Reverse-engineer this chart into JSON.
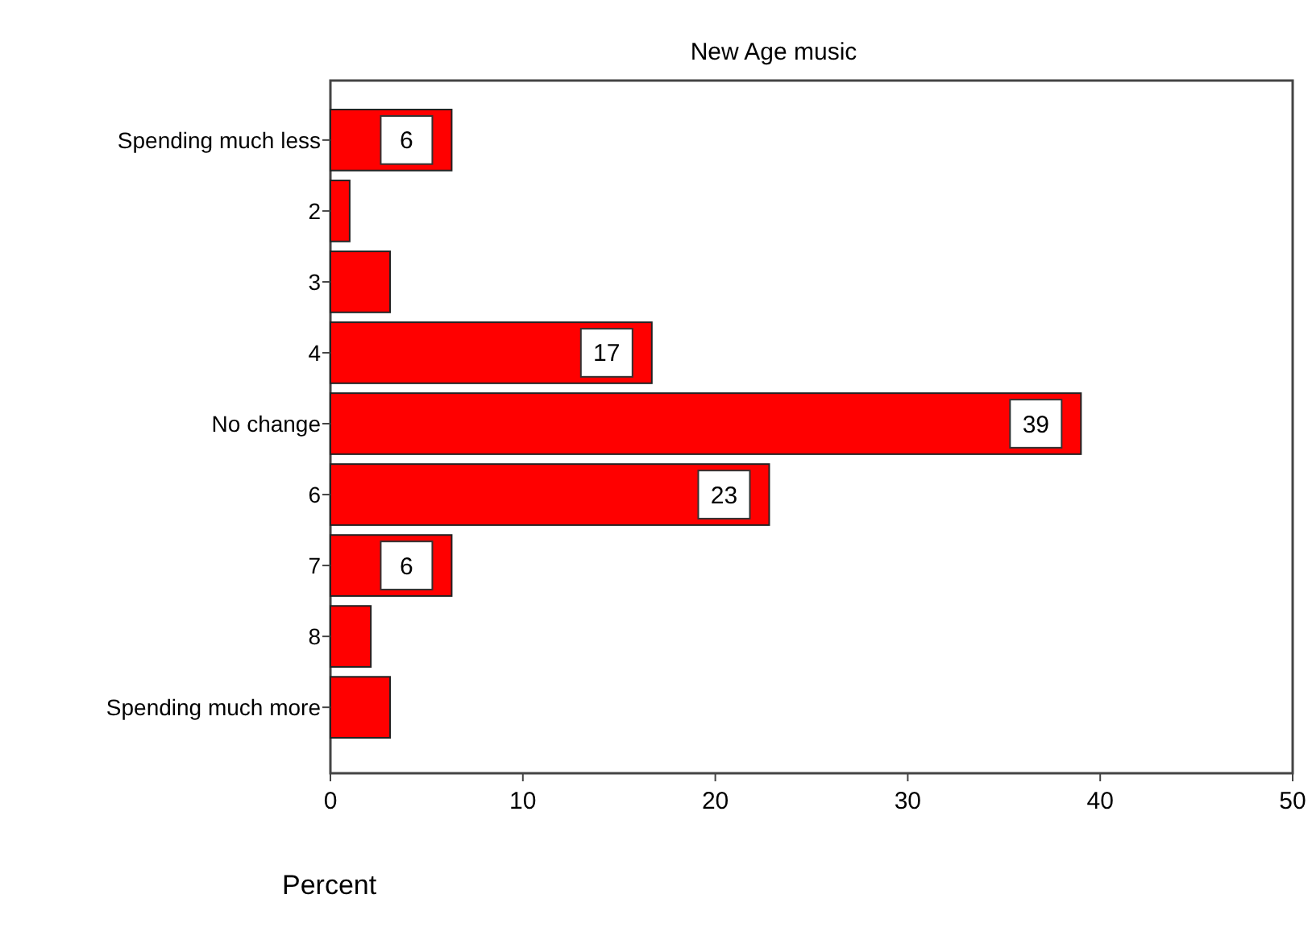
{
  "chart_data": {
    "type": "bar",
    "orientation": "horizontal",
    "title": "New Age music",
    "xlabel": "Percent",
    "categories": [
      "Spending much less",
      "2",
      "3",
      "4",
      "No change",
      "6",
      "7",
      "8",
      "Spending much more"
    ],
    "values": [
      6.3,
      1.0,
      3.1,
      16.7,
      39.0,
      22.8,
      6.3,
      2.1,
      3.1
    ],
    "value_labels": [
      "6",
      null,
      null,
      "17",
      "39",
      "23",
      "6",
      null,
      null
    ],
    "color": "#ff0000",
    "xlim": [
      0,
      50
    ],
    "xticks": [
      0,
      10,
      20,
      30,
      40,
      50
    ]
  }
}
